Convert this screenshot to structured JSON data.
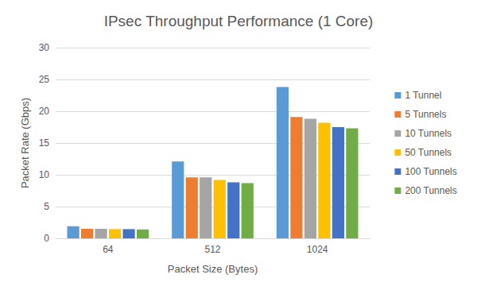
{
  "chart_data": {
    "type": "bar",
    "title": "IPsec Throughput Performance (1 Core)",
    "x_label": "Packet Size (Bytes)",
    "y_label": "Packet Rate (Gbps)",
    "categories": [
      "64",
      "512",
      "1024"
    ],
    "series": [
      {
        "name": "1 Tunnel",
        "color": "#5b9bd5",
        "values": [
          1.9,
          12.1,
          23.8
        ]
      },
      {
        "name": "5 Tunnels",
        "color": "#ed7d31",
        "values": [
          1.5,
          9.6,
          19.1
        ]
      },
      {
        "name": "10 Tunnels",
        "color": "#a5a5a5",
        "values": [
          1.5,
          9.6,
          18.8
        ]
      },
      {
        "name": "50 Tunnels",
        "color": "#ffc000",
        "values": [
          1.45,
          9.2,
          18.2
        ]
      },
      {
        "name": "100 Tunnels",
        "color": "#4472c4",
        "values": [
          1.45,
          8.8,
          17.5
        ]
      },
      {
        "name": "200 Tunnels",
        "color": "#70ad47",
        "values": [
          1.4,
          8.7,
          17.3
        ]
      }
    ],
    "ylim": [
      0,
      30
    ],
    "yticks": [
      0,
      5,
      10,
      15,
      20,
      25,
      30
    ],
    "grid": true,
    "legend": "right"
  }
}
